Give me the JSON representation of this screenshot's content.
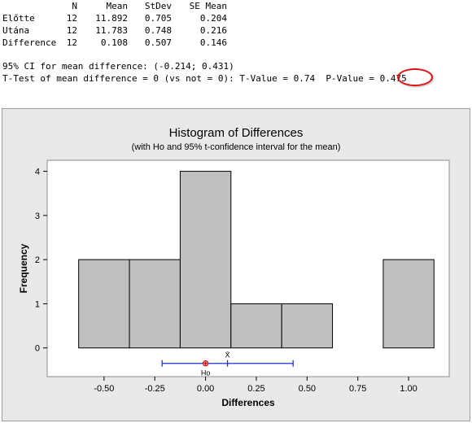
{
  "stats_table": {
    "headers": [
      "",
      "N",
      "Mean",
      "StDev",
      "SE Mean"
    ],
    "rows": [
      {
        "label": "Előtte",
        "n": "12",
        "mean": "11.892",
        "stdev": "0.705",
        "se_mean": "0.204"
      },
      {
        "label": "Utána",
        "n": "12",
        "mean": "11.783",
        "stdev": "0.748",
        "se_mean": "0.216"
      },
      {
        "label": "Difference",
        "n": "12",
        "mean": "0.108",
        "stdev": "0.507",
        "se_mean": "0.146"
      }
    ]
  },
  "ci_line": "95% CI for mean difference: (-0.214; 0.431)",
  "ttest_line": "T-Test of mean difference = 0 (vs not = 0): T-Value = 0.74  P-Value = 0.475",
  "highlight_color": "#dd1111",
  "chart_data": {
    "type": "histogram",
    "title": "Histogram of Differences",
    "subtitle": "(with Ho and 95% t-confidence interval for the mean)",
    "xlabel": "Differences",
    "ylabel": "Frequency",
    "bins": [
      {
        "from": -0.625,
        "to": -0.375,
        "count": 2
      },
      {
        "from": -0.375,
        "to": -0.125,
        "count": 2
      },
      {
        "from": -0.125,
        "to": 0.125,
        "count": 4
      },
      {
        "from": 0.125,
        "to": 0.375,
        "count": 1
      },
      {
        "from": 0.375,
        "to": 0.625,
        "count": 1
      },
      {
        "from": 0.625,
        "to": 0.875,
        "count": 0
      },
      {
        "from": 0.875,
        "to": 1.125,
        "count": 2
      }
    ],
    "xticks": [
      -0.5,
      -0.25,
      0.0,
      0.25,
      0.5,
      0.75,
      1.0
    ],
    "xtick_labels": [
      "-0.50",
      "-0.25",
      "0.00",
      "0.25",
      "0.50",
      "0.75",
      "1.00"
    ],
    "yticks": [
      0,
      1,
      2,
      3,
      4
    ],
    "xlim": [
      -0.78,
      1.2
    ],
    "ylim": [
      -0.65,
      4.25
    ],
    "bar_color": "#c0c0c0",
    "ci": {
      "lower": -0.214,
      "upper": 0.431,
      "mean": 0.108,
      "h0": 0.0,
      "y": -0.35,
      "color": "#1e2fd6"
    },
    "h0_label": "Ho",
    "mean_label": "X̄",
    "grid": false
  }
}
